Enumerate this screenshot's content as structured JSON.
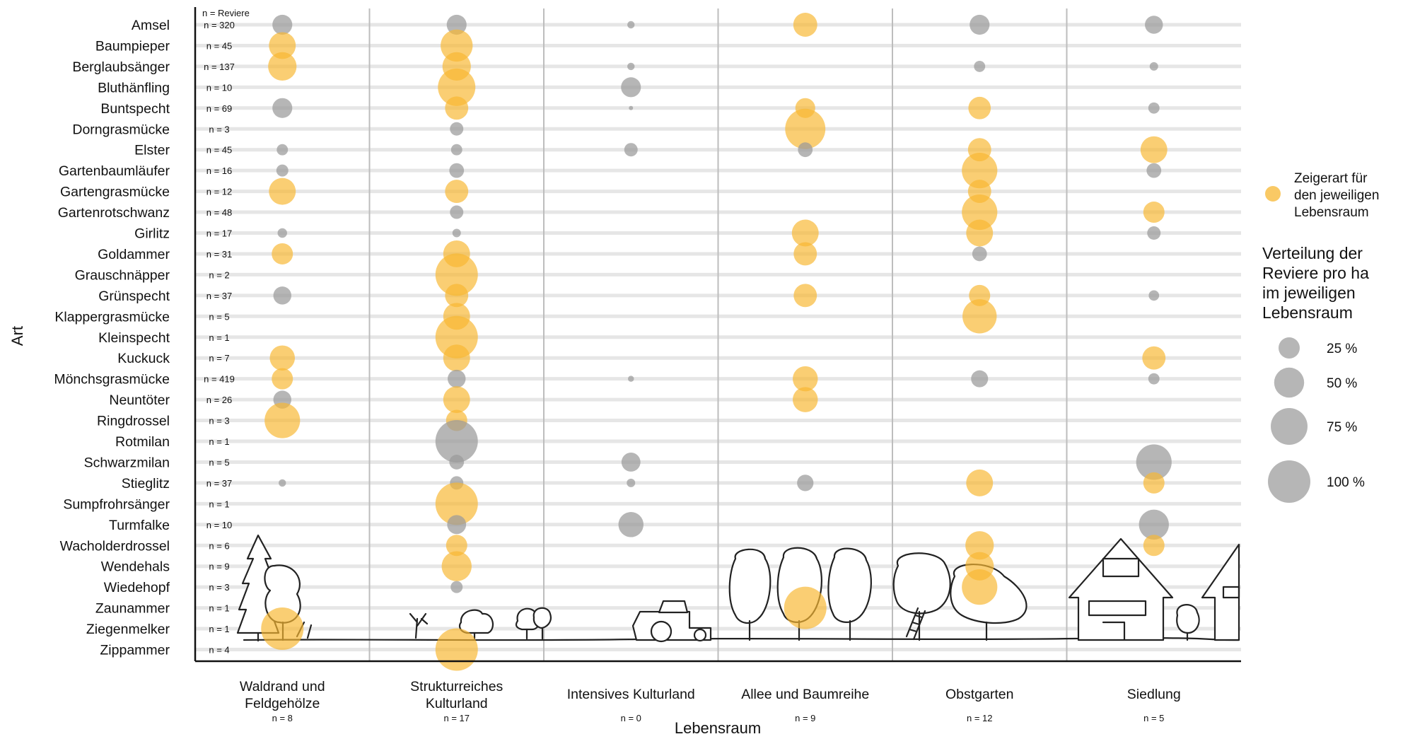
{
  "chart_data": {
    "type": "scatter",
    "xlabel": "Lebensraum",
    "ylabel": "Art",
    "n_header": "n = Reviere",
    "habitats": [
      {
        "label": [
          "Waldrand und",
          "Feldgehölze"
        ],
        "n": "n = 8"
      },
      {
        "label": [
          "Strukturreiches",
          "Kulturland"
        ],
        "n": "n = 17"
      },
      {
        "label": [
          "Intensives Kulturland"
        ],
        "n": "n = 0"
      },
      {
        "label": [
          "Allee und Baumreihe"
        ],
        "n": "n = 9"
      },
      {
        "label": [
          "Obstgarten"
        ],
        "n": "n = 12"
      },
      {
        "label": [
          "Siedlung"
        ],
        "n": "n = 5"
      }
    ],
    "species": [
      "Amsel",
      "Baumpieper",
      "Berglaubsänger",
      "Bluthänfling",
      "Buntspecht",
      "Dorngrasmücke",
      "Elster",
      "Gartenbaumläufer",
      "Gartengrasmücke",
      "Gartenrotschwanz",
      "Girlitz",
      "Goldammer",
      "Grauschnäpper",
      "Grünspecht",
      "Klappergrasmücke",
      "Kleinspecht",
      "Kuckuck",
      "Mönchsgrasmücke",
      "Neuntöter",
      "Ringdrossel",
      "Rotmilan",
      "Schwarzmilan",
      "Stieglitz",
      "Sumpfrohrsänger",
      "Turmfalke",
      "Wacholderdrossel",
      "Wendehals",
      "Wiedehopf",
      "Zaunammer",
      "Ziegenmelker",
      "Zippammer"
    ],
    "species_n": [
      "n = 320",
      "n = 45",
      "n = 137",
      "n = 10",
      "n = 69",
      "n = 3",
      "n = 45",
      "n = 16",
      "n = 12",
      "n = 48",
      "n = 17",
      "n = 31",
      "n = 2",
      "n = 37",
      "n = 5",
      "n = 1",
      "n = 7",
      "n = 419",
      "n = 26",
      "n = 3",
      "n = 1",
      "n = 5",
      "n = 37",
      "n = 1",
      "n = 10",
      "n = 6",
      "n = 9",
      "n = 3",
      "n = 1",
      "n = 1",
      "n = 4"
    ],
    "series": [
      {
        "name": "Zeigerart für den jeweiligen Lebensraum",
        "color": "#f7b731"
      },
      {
        "name": "",
        "color": "#9a9a9a"
      }
    ],
    "points": [
      [
        "Amsel",
        0,
        22,
        "g"
      ],
      [
        "Amsel",
        1,
        22,
        "g"
      ],
      [
        "Amsel",
        2,
        3,
        "g"
      ],
      [
        "Amsel",
        3,
        32,
        "y"
      ],
      [
        "Amsel",
        4,
        22,
        "g"
      ],
      [
        "Amsel",
        5,
        18,
        "g"
      ],
      [
        "Baumpieper",
        0,
        40,
        "y"
      ],
      [
        "Baumpieper",
        1,
        57,
        "y"
      ],
      [
        "Berglaubsänger",
        0,
        45,
        "y"
      ],
      [
        "Berglaubsänger",
        1,
        45,
        "y"
      ],
      [
        "Berglaubsänger",
        2,
        3,
        "g"
      ],
      [
        "Berglaubsänger",
        4,
        7,
        "g"
      ],
      [
        "Berglaubsänger",
        5,
        4,
        "g"
      ],
      [
        "Bluthänfling",
        1,
        78,
        "y"
      ],
      [
        "Bluthänfling",
        2,
        22,
        "g"
      ],
      [
        "Buntspecht",
        0,
        22,
        "g"
      ],
      [
        "Buntspecht",
        1,
        30,
        "y"
      ],
      [
        "Buntspecht",
        2,
        1,
        "g"
      ],
      [
        "Buntspecht",
        3,
        22,
        "y"
      ],
      [
        "Buntspecht",
        4,
        28,
        "y"
      ],
      [
        "Buntspecht",
        5,
        7,
        "g"
      ],
      [
        "Dorngrasmücke",
        1,
        10,
        "g"
      ],
      [
        "Dorngrasmücke",
        3,
        90,
        "y"
      ],
      [
        "Elster",
        0,
        7,
        "g"
      ],
      [
        "Elster",
        1,
        7,
        "g"
      ],
      [
        "Elster",
        2,
        10,
        "g"
      ],
      [
        "Elster",
        3,
        12,
        "g"
      ],
      [
        "Elster",
        4,
        30,
        "y"
      ],
      [
        "Elster",
        5,
        40,
        "y"
      ],
      [
        "Gartenbaumläufer",
        0,
        8,
        "g"
      ],
      [
        "Gartenbaumläufer",
        1,
        12,
        "g"
      ],
      [
        "Gartenbaumläufer",
        4,
        70,
        "y"
      ],
      [
        "Gartenbaumläufer",
        5,
        12,
        "g"
      ],
      [
        "Gartengrasmücke",
        0,
        40,
        "y"
      ],
      [
        "Gartengrasmücke",
        1,
        30,
        "y"
      ],
      [
        "Gartengrasmücke",
        4,
        30,
        "y"
      ],
      [
        "Gartenrotschwanz",
        1,
        10,
        "g"
      ],
      [
        "Gartenrotschwanz",
        4,
        70,
        "y"
      ],
      [
        "Gartenrotschwanz",
        5,
        25,
        "y"
      ],
      [
        "Girlitz",
        0,
        5,
        "g"
      ],
      [
        "Girlitz",
        1,
        4,
        "g"
      ],
      [
        "Girlitz",
        3,
        40,
        "y"
      ],
      [
        "Girlitz",
        4,
        40,
        "y"
      ],
      [
        "Girlitz",
        5,
        10,
        "g"
      ],
      [
        "Goldammer",
        0,
        25,
        "y"
      ],
      [
        "Goldammer",
        1,
        40,
        "y"
      ],
      [
        "Goldammer",
        3,
        30,
        "y"
      ],
      [
        "Goldammer",
        4,
        12,
        "g"
      ],
      [
        "Grauschnäpper",
        1,
        100,
        "y"
      ],
      [
        "Grünspecht",
        0,
        18,
        "g"
      ],
      [
        "Grünspecht",
        1,
        30,
        "y"
      ],
      [
        "Grünspecht",
        3,
        30,
        "y"
      ],
      [
        "Grünspecht",
        4,
        25,
        "y"
      ],
      [
        "Grünspecht",
        5,
        6,
        "g"
      ],
      [
        "Klappergrasmücke",
        1,
        40,
        "y"
      ],
      [
        "Klappergrasmücke",
        4,
        65,
        "y"
      ],
      [
        "Kleinspecht",
        1,
        100,
        "y"
      ],
      [
        "Kuckuck",
        0,
        35,
        "y"
      ],
      [
        "Kuckuck",
        1,
        40,
        "y"
      ],
      [
        "Kuckuck",
        5,
        30,
        "y"
      ],
      [
        "Mönchsgrasmücke",
        0,
        25,
        "y"
      ],
      [
        "Mönchsgrasmücke",
        1,
        18,
        "g"
      ],
      [
        "Mönchsgrasmücke",
        2,
        2,
        "g"
      ],
      [
        "Mönchsgrasmücke",
        3,
        35,
        "y"
      ],
      [
        "Mönchsgrasmücke",
        4,
        16,
        "g"
      ],
      [
        "Mönchsgrasmücke",
        5,
        7,
        "g"
      ],
      [
        "Neuntöter",
        0,
        18,
        "g"
      ],
      [
        "Neuntöter",
        1,
        40,
        "y"
      ],
      [
        "Neuntöter",
        3,
        35,
        "y"
      ],
      [
        "Ringdrossel",
        0,
        70,
        "y"
      ],
      [
        "Ringdrossel",
        1,
        25,
        "y"
      ],
      [
        "Rotmilan",
        1,
        100,
        "g"
      ],
      [
        "Schwarzmilan",
        1,
        12,
        "g"
      ],
      [
        "Schwarzmilan",
        2,
        20,
        "g"
      ],
      [
        "Schwarzmilan",
        5,
        70,
        "g"
      ],
      [
        "Stieglitz",
        0,
        3,
        "g"
      ],
      [
        "Stieglitz",
        1,
        10,
        "g"
      ],
      [
        "Stieglitz",
        2,
        4,
        "g"
      ],
      [
        "Stieglitz",
        3,
        15,
        "g"
      ],
      [
        "Stieglitz",
        4,
        40,
        "y"
      ],
      [
        "Stieglitz",
        5,
        25,
        "y"
      ],
      [
        "Sumpfrohrsänger",
        1,
        100,
        "y"
      ],
      [
        "Turmfalke",
        1,
        20,
        "g"
      ],
      [
        "Turmfalke",
        2,
        35,
        "g"
      ],
      [
        "Turmfalke",
        5,
        50,
        "g"
      ],
      [
        "Wacholderdrossel",
        1,
        25,
        "y"
      ],
      [
        "Wacholderdrossel",
        4,
        45,
        "y"
      ],
      [
        "Wacholderdrossel",
        5,
        25,
        "y"
      ],
      [
        "Wendehals",
        1,
        50,
        "y"
      ],
      [
        "Wendehals",
        4,
        45,
        "y"
      ],
      [
        "Wiedehopf",
        1,
        8,
        "g"
      ],
      [
        "Wiedehopf",
        4,
        70,
        "y"
      ],
      [
        "Zaunammer",
        3,
        100,
        "y"
      ],
      [
        "Ziegenmelker",
        0,
        100,
        "y"
      ],
      [
        "Zippammer",
        1,
        100,
        "y"
      ]
    ],
    "legend": {
      "indicator_label": [
        "Zeigerart für",
        "den jeweiligen",
        "Lebensraum"
      ],
      "size_title": [
        "Verteilung der",
        "Reviere pro ha",
        "im jeweiligen",
        "Lebensraum"
      ],
      "sizes": [
        {
          "value": 25,
          "label": "25 %"
        },
        {
          "value": 50,
          "label": "50 %"
        },
        {
          "value": 75,
          "label": "75 %"
        },
        {
          "value": 100,
          "label": "100 %"
        }
      ]
    }
  }
}
